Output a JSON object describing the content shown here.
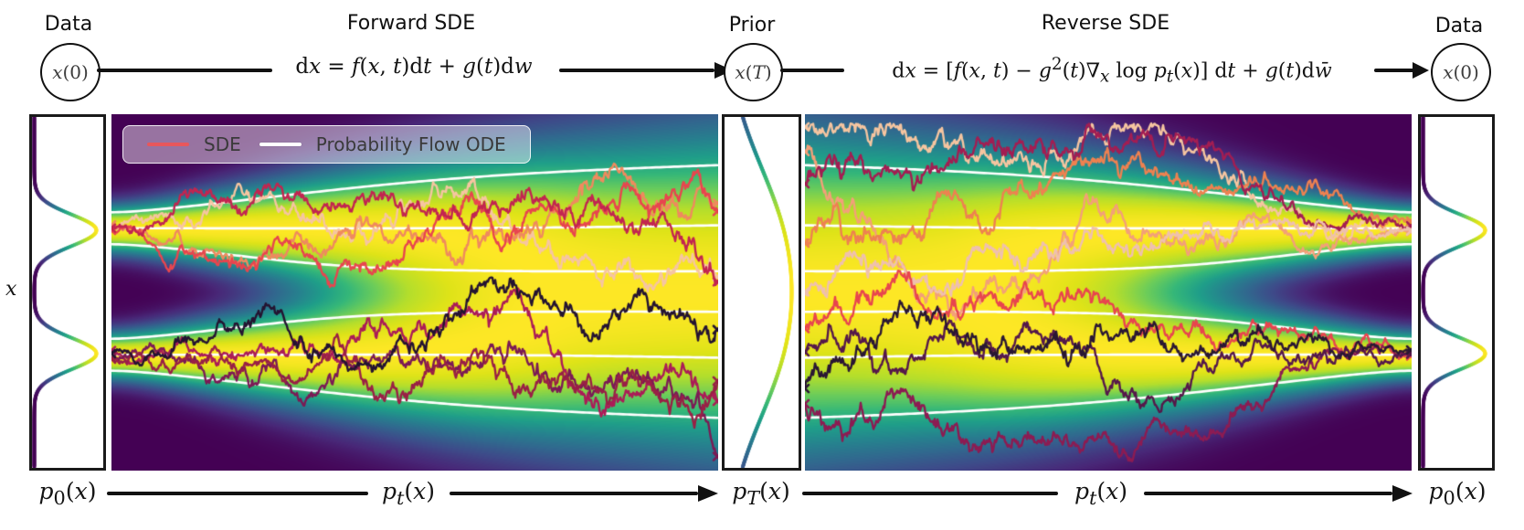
{
  "header": {
    "data_left_label": "Data",
    "node_x0_left": "<i>x</i>(0)",
    "forward_title": "Forward SDE",
    "eq_forward": "d<i>x</i> = <i>f</i>(<i>x</i>, <i>t</i>)d<i>t</i> + <i>g</i>(<i>t</i>)d<i>w</i>",
    "prior_label": "Prior",
    "node_xT": "<i>x</i>(<i>T</i>)",
    "reverse_title": "Reverse SDE",
    "eq_reverse": "d<i>x</i> = [<i>f</i>(<i>x</i>, <i>t</i>) − <i>g</i><sup>2</sup>(<i>t</i>)∇<sub><i>x</i></sub> log <i>p</i><sub><i>t</i></sub>(<i>x</i>)] d<i>t</i> + <i>g</i>(<i>t</i>)d<i>w̄</i>",
    "data_right_label": "Data",
    "node_x0_right": "<i>x</i>(0)"
  },
  "axis": {
    "x_label": "<i>x</i>"
  },
  "legend": {
    "sde_label": "SDE",
    "ode_label": "Probability Flow ODE",
    "sde_color": "#e8575c",
    "ode_color": "#ffffff"
  },
  "bottom": {
    "p0_left": "<i>p</i><sub>0</sub>(<i>x</i>)",
    "pt_forward": "<i>p</i><sub><i>t</i></sub>(<i>x</i>)",
    "pT": "<i>p</i><sub><i>T</i></sub>(<i>x</i>)",
    "pt_reverse": "<i>p</i><sub><i>t</i></sub>(<i>x</i>)",
    "p0_right": "<i>p</i><sub>0</sub>(<i>x</i>)"
  },
  "chart_data": {
    "type": "heatmap",
    "title": "Score-based generative modeling: forward and reverse SDE densities p_t(x)",
    "panels": [
      "p_0(x) marginal",
      "forward SDE density",
      "p_T(x) prior marginal",
      "reverse SDE density",
      "p_0(x) marginal"
    ],
    "colormap": "viridis",
    "colormap_stops": [
      [
        68,
        1,
        84
      ],
      [
        72,
        40,
        120
      ],
      [
        62,
        74,
        137
      ],
      [
        49,
        104,
        142
      ],
      [
        38,
        130,
        142
      ],
      [
        31,
        158,
        137
      ],
      [
        53,
        183,
        121
      ],
      [
        109,
        205,
        89
      ],
      [
        180,
        222,
        44
      ],
      [
        223,
        227,
        24
      ],
      [
        253,
        231,
        37
      ]
    ],
    "x_range": [
      -1,
      1
    ],
    "x_modes": [
      -0.355,
      0.355
    ],
    "sigma0": 0.09,
    "sigma_max": 0.45,
    "growth_exponent": 1.6,
    "column_normalized": true,
    "ode_color": "#ffffff",
    "ode_quantiles": [
      0.08,
      0.25,
      0.42,
      0.58,
      0.75,
      0.92
    ],
    "marginals": {
      "p0": "bimodal: 0.5·N(-0.355, 0.09²) + 0.5·N(0.355, 0.09²)",
      "pT": "unimodal: mixture diffused to sigma 0.45"
    },
    "sde_paths_forward": [
      {
        "color": "#f6c5a0",
        "seed": 11,
        "start_mode": "upper"
      },
      {
        "color": "#ef8a5e",
        "seed": 12,
        "start_mode": "upper"
      },
      {
        "color": "#e8454e",
        "seed": 13,
        "start_mode": "upper"
      },
      {
        "color": "#c22550",
        "seed": 14,
        "start_mode": "upper"
      },
      {
        "color": "#ab1c57",
        "seed": 15,
        "start_mode": "lower"
      },
      {
        "color": "#7b1a55",
        "seed": 16,
        "start_mode": "lower"
      },
      {
        "color": "#992045",
        "seed": 17,
        "start_mode": "lower"
      },
      {
        "color": "#241331",
        "seed": 18,
        "start_mode": "lower"
      }
    ],
    "sde_paths_reverse": [
      {
        "color": "#f6c5a0",
        "seed": 21,
        "start_mode": "upper"
      },
      {
        "color": "#f3a078",
        "seed": 22,
        "start_mode": "upper"
      },
      {
        "color": "#ee8150",
        "seed": 23,
        "start_mode": "upper"
      },
      {
        "color": "#a31d52",
        "seed": 24,
        "start_mode": "upper"
      },
      {
        "color": "#efc0ae",
        "seed": 25,
        "start_mode": "upper"
      },
      {
        "color": "#e8454e",
        "seed": 26,
        "start_mode": "lower"
      },
      {
        "color": "#8c1b52",
        "seed": 27,
        "start_mode": "lower"
      },
      {
        "color": "#55184a",
        "seed": 28,
        "start_mode": "lower"
      },
      {
        "color": "#2a1733",
        "seed": 29,
        "start_mode": "lower"
      }
    ]
  }
}
